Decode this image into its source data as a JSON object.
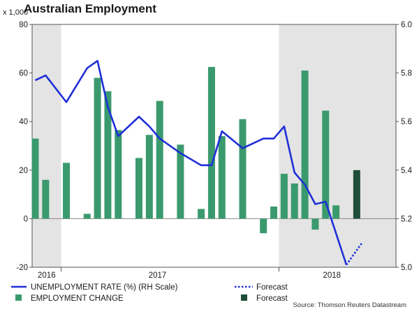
{
  "chart_data": {
    "type": "bar+line",
    "title": "Australian Employment",
    "left_axis": {
      "units": "x 1,000",
      "ylim": [
        -20,
        80
      ],
      "ticks": [
        "-20",
        "0",
        "20",
        "40",
        "60",
        "80"
      ]
    },
    "right_axis": {
      "ylim": [
        5.0,
        6.0
      ],
      "ticks": [
        "5.0",
        "5.2",
        "5.4",
        "5.6",
        "5.8",
        "6.0"
      ]
    },
    "x_labels": [
      "2016",
      "2017",
      "2018"
    ],
    "shaded_periods": [
      "2016",
      "2018"
    ],
    "series": [
      {
        "name": "EMPLOYMENT CHANGE",
        "kind": "bar",
        "color": "#3a9a6e",
        "values": [
          33,
          16,
          23,
          2,
          58,
          52.5,
          36.5,
          25,
          34.5,
          48.5,
          30.5,
          4,
          62.5,
          34,
          41,
          -6,
          5,
          18.5,
          14.5,
          61,
          -4.5,
          44.5,
          5.5
        ]
      },
      {
        "name": "Forecast",
        "kind": "bar",
        "color": "#1e4d3a",
        "values": [
          20
        ]
      },
      {
        "name": "UNEMPLOYMENT RATE (%) (RH Scale)",
        "kind": "line",
        "color": "#1f2fd6",
        "values": [
          5.77,
          5.79,
          5.68,
          5.82,
          5.85,
          5.66,
          5.54,
          5.62,
          5.58,
          5.53,
          5.47,
          5.42,
          5.42,
          5.56,
          5.49,
          5.53,
          5.53,
          5.58,
          5.39,
          5.34,
          5.26,
          5.27,
          5.01
        ]
      },
      {
        "name": "Forecast",
        "kind": "line-dotted",
        "color": "#1f2fd6",
        "values": [
          5.01,
          5.1
        ]
      }
    ],
    "legend": [
      "UNEMPLOYMENT RATE (%) (RH Scale)",
      "Forecast",
      "EMPLOYMENT CHANGE",
      "Forecast"
    ],
    "source": "Source: Thomson Reuters Datastream"
  },
  "colors": {
    "bar": "#3a9a6e",
    "forecast_bar": "#1e4d3a",
    "line": "#1f2fd6",
    "shade": "#e4e4e4"
  }
}
